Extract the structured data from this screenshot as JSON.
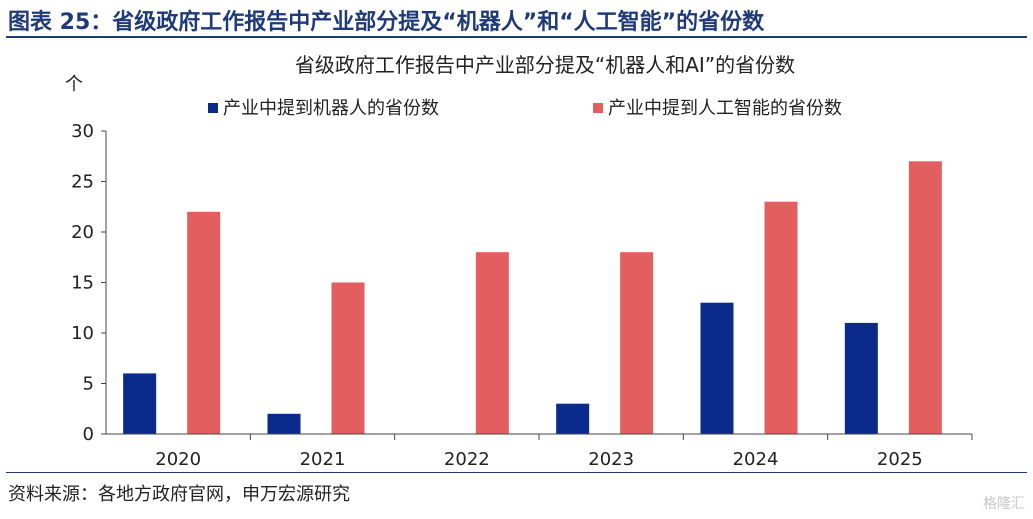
{
  "figure_title": "图表 25：省级政府工作报告中产业部分提及“机器人”和“人工智能”的省份数",
  "source": "资料来源：各地方政府官网，申万宏源研究",
  "watermark": "格隆汇",
  "colors": {
    "series1": "#0a2a8c",
    "series2": "#e35e5e",
    "frame": "#1f3a7a"
  },
  "chart_data": {
    "type": "bar",
    "title": "省级政府工作报告中产业部分提及“机器人和AI”的省份数",
    "ylabel": "个",
    "xlabel": "",
    "categories": [
      "2020",
      "2021",
      "2022",
      "2023",
      "2024",
      "2025"
    ],
    "series": [
      {
        "name": "产业中提到机器人的省份数",
        "values": [
          6,
          2,
          0,
          3,
          13,
          11
        ]
      },
      {
        "name": "产业中提到人工智能的省份数",
        "values": [
          22,
          15,
          18,
          18,
          23,
          27
        ]
      }
    ],
    "ylim": [
      0,
      30
    ],
    "yticks": [
      "0",
      "5",
      "10",
      "15",
      "20",
      "25",
      "30"
    ],
    "grid": false,
    "legend": "top"
  }
}
